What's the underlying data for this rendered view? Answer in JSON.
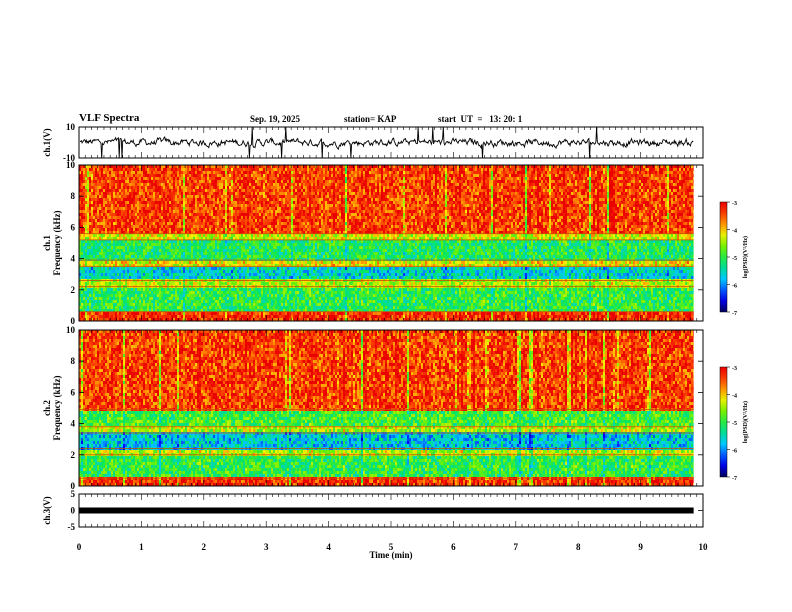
{
  "header": {
    "title": "VLF Spectra",
    "date": "Sep. 19, 2025",
    "station": "station= KAP",
    "start": "start  UT  =   13: 20: 1"
  },
  "chart_data": [
    {
      "id": "ch1-waveform",
      "type": "line",
      "ylabel": "ch.1(V)",
      "y_ticks": [
        "10",
        "-10"
      ],
      "ylim": [
        -10,
        10
      ],
      "xlim": [
        0,
        10
      ],
      "x_data_end": 9.85,
      "description_values": "noisy waveform oscillating mostly between -3 and +3 V with spikes to full scale"
    },
    {
      "id": "ch1-spectrogram",
      "type": "heatmap",
      "ylabel_lines": [
        "ch.1",
        "Frequency (kHz)"
      ],
      "y_ticks": [
        "0",
        "2",
        "4",
        "6",
        "8",
        "10"
      ],
      "ylim": [
        0,
        10
      ],
      "xlim": [
        0,
        10
      ],
      "x_data_end": 9.85,
      "band_profile": [
        {
          "from": 0,
          "to": 0.6,
          "level": -3.3
        },
        {
          "from": 0.6,
          "to": 2.2,
          "level": -5.0
        },
        {
          "from": 2.2,
          "to": 2.6,
          "level": -4.4
        },
        {
          "from": 2.6,
          "to": 3.5,
          "level": -5.6
        },
        {
          "from": 3.5,
          "to": 3.9,
          "level": -4.2
        },
        {
          "from": 3.9,
          "to": 5.2,
          "level": -5.1
        },
        {
          "from": 5.2,
          "to": 5.6,
          "level": -4.3
        },
        {
          "from": 5.6,
          "to": 10,
          "level": -3.4
        }
      ],
      "colorbar": {
        "label": "log(PSD)(V²/Hz)",
        "ticks": [
          "-3",
          "-4",
          "-5",
          "-6",
          "-7"
        ],
        "range": [
          -7,
          -3
        ]
      }
    },
    {
      "id": "ch2-spectrogram",
      "type": "heatmap",
      "ylabel_lines": [
        "ch.2",
        "Frequency (kHz)"
      ],
      "y_ticks": [
        "0",
        "2",
        "4",
        "6",
        "8",
        "10"
      ],
      "ylim": [
        0,
        10
      ],
      "xlim": [
        0,
        10
      ],
      "x_data_end": 9.85,
      "band_profile": [
        {
          "from": 0,
          "to": 0.5,
          "level": -3.3
        },
        {
          "from": 0.5,
          "to": 2.0,
          "level": -5.0
        },
        {
          "from": 2.0,
          "to": 2.4,
          "level": -4.4
        },
        {
          "from": 2.4,
          "to": 3.4,
          "level": -5.7
        },
        {
          "from": 3.4,
          "to": 3.8,
          "level": -4.4
        },
        {
          "from": 3.8,
          "to": 4.9,
          "level": -4.9
        },
        {
          "from": 4.9,
          "to": 10,
          "level": -3.4
        }
      ],
      "colorbar": {
        "label": "log(PSD)(V²/Hz)",
        "ticks": [
          "-3",
          "-4",
          "-5",
          "-6",
          "-7"
        ],
        "range": [
          -7,
          -3
        ]
      }
    },
    {
      "id": "ch3-waveform",
      "type": "line",
      "ylabel": "ch.3(V)",
      "y_ticks": [
        "5",
        "0",
        "-5"
      ],
      "ylim": [
        -5,
        5
      ],
      "xlim": [
        0,
        10
      ],
      "x_data_end": 9.85,
      "level": 0,
      "description_values": "flat line at about 0 V with small noise"
    }
  ],
  "x_axis": {
    "label": "Time (min)",
    "ticks": [
      "0",
      "1",
      "2",
      "3",
      "4",
      "5",
      "6",
      "7",
      "8",
      "9",
      "10"
    ]
  }
}
